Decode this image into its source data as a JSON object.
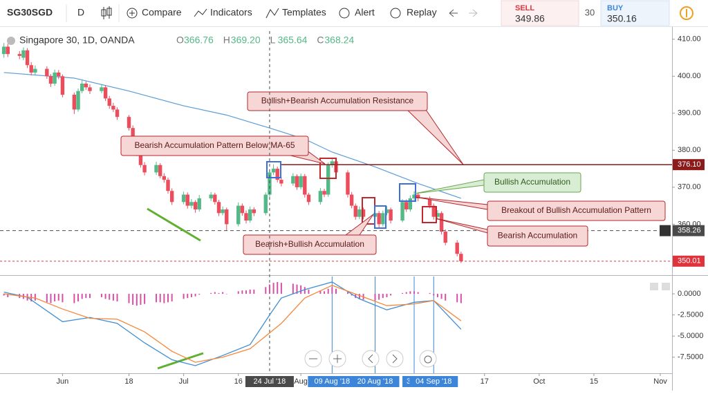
{
  "toolbar": {
    "symbol": "SG30SGD",
    "interval": "D",
    "items": [
      "Compare",
      "Indicators",
      "Templates",
      "Alert",
      "Replay"
    ],
    "sell_label": "SELL",
    "sell_price": "349.86",
    "spread": "30",
    "buy_label": "BUY",
    "buy_price": "350.16"
  },
  "legend": {
    "title": "Singapore 30, 1D, OANDA",
    "ohlc": [
      {
        "label": "O",
        "value": "366.76"
      },
      {
        "label": "H",
        "value": "369.20"
      },
      {
        "label": "L",
        "value": "365.64"
      },
      {
        "label": "C",
        "value": "368.24"
      }
    ]
  },
  "chart_data": [
    {
      "type": "candlestick",
      "colors": {
        "up": "#53b987",
        "down": "#eb4d5c"
      },
      "x": [
        "2018-05-17",
        "2018-05-18",
        "2018-05-21",
        "2018-05-22",
        "2018-05-23",
        "2018-05-24",
        "2018-05-25",
        "2018-05-28",
        "2018-05-29",
        "2018-05-30",
        "2018-05-31",
        "2018-06-01",
        "2018-06-04",
        "2018-06-05",
        "2018-06-06",
        "2018-06-07",
        "2018-06-08",
        "2018-06-11",
        "2018-06-12",
        "2018-06-13",
        "2018-06-14",
        "2018-06-15",
        "2018-06-18",
        "2018-06-19",
        "2018-06-20",
        "2018-06-21",
        "2018-06-22",
        "2018-06-25",
        "2018-06-26",
        "2018-06-27",
        "2018-06-28",
        "2018-06-29",
        "2018-07-02",
        "2018-07-03",
        "2018-07-04",
        "2018-07-05",
        "2018-07-06",
        "2018-07-09",
        "2018-07-10",
        "2018-07-11",
        "2018-07-12",
        "2018-07-13",
        "2018-07-16",
        "2018-07-17",
        "2018-07-18",
        "2018-07-19",
        "2018-07-20",
        "2018-07-23",
        "2018-07-24",
        "2018-07-25",
        "2018-07-26",
        "2018-07-27",
        "2018-07-30",
        "2018-07-31",
        "2018-08-01",
        "2018-08-02",
        "2018-08-03",
        "2018-08-06",
        "2018-08-07",
        "2018-08-08",
        "2018-08-09",
        "2018-08-10",
        "2018-08-13",
        "2018-08-14",
        "2018-08-15",
        "2018-08-16",
        "2018-08-17",
        "2018-08-20",
        "2018-08-21",
        "2018-08-22",
        "2018-08-23",
        "2018-08-24",
        "2018-08-27",
        "2018-08-28",
        "2018-08-29",
        "2018-08-30",
        "2018-08-31",
        "2018-09-03",
        "2018-09-04",
        "2018-09-05",
        "2018-09-06",
        "2018-09-07",
        "2018-09-10",
        "2018-09-11"
      ],
      "ohlc": [
        [
          406,
          409,
          405,
          408
        ],
        [
          408,
          408.8,
          405.2,
          406
        ],
        [
          406,
          406.8,
          404.6,
          405.5
        ],
        [
          405,
          407.8,
          404.3,
          407
        ],
        [
          407,
          407.6,
          402.2,
          403
        ],
        [
          403,
          403.8,
          400.2,
          401
        ],
        [
          401,
          402.9,
          400.3,
          402
        ],
        [
          402,
          402.7,
          399.3,
          400
        ],
        [
          400,
          400.6,
          397.1,
          398
        ],
        [
          398,
          401.8,
          397.4,
          401
        ],
        [
          401,
          401.7,
          399.2,
          400
        ],
        [
          400,
          400.5,
          394.3,
          395
        ],
        [
          395,
          395.6,
          389.8,
          391
        ],
        [
          391,
          396.7,
          390.4,
          396
        ],
        [
          396,
          398.9,
          395.4,
          398
        ],
        [
          398,
          398.6,
          396.3,
          397
        ],
        [
          397,
          397.8,
          395.2,
          396
        ],
        [
          396,
          397.9,
          395.4,
          397
        ],
        [
          397,
          397.5,
          393.3,
          394
        ],
        [
          394,
          394.7,
          391.2,
          392
        ],
        [
          392,
          392.8,
          390.3,
          391
        ],
        [
          391,
          391.6,
          388.2,
          389
        ],
        [
          389,
          389.5,
          385.3,
          386
        ],
        [
          386,
          386.7,
          381.2,
          382
        ],
        [
          382,
          382.8,
          378.4,
          379
        ],
        [
          379,
          379.6,
          375.3,
          376
        ],
        [
          376,
          376.8,
          373.2,
          374
        ],
        [
          374,
          376.9,
          373.3,
          376
        ],
        [
          376,
          376.5,
          372.4,
          373
        ],
        [
          373,
          373.8,
          371.2,
          372
        ],
        [
          372,
          372.6,
          368.3,
          369
        ],
        [
          369,
          369.7,
          365.2,
          366
        ],
        [
          366,
          368.8,
          365.4,
          368
        ],
        [
          368,
          368.6,
          364.2,
          365
        ],
        [
          365,
          366.8,
          364.3,
          366
        ],
        [
          366,
          366.5,
          363.1,
          364
        ],
        [
          364,
          367.9,
          363.4,
          367
        ],
        [
          367,
          368.7,
          366.3,
          368
        ],
        [
          368,
          368.5,
          365.3,
          366
        ],
        [
          366,
          366.6,
          362.2,
          363
        ],
        [
          363,
          364.8,
          362.4,
          364
        ],
        [
          364,
          364.5,
          358.2,
          360
        ],
        [
          360,
          365.9,
          359.4,
          365
        ],
        [
          365,
          365.6,
          362.3,
          363
        ],
        [
          363,
          363.7,
          360.2,
          361
        ],
        [
          361,
          364.8,
          360.4,
          364
        ],
        [
          364,
          364.6,
          362.2,
          363
        ],
        [
          363,
          368.6,
          362.4,
          368
        ],
        [
          368,
          374.9,
          367.4,
          374
        ],
        [
          374,
          376.2,
          373.3,
          375
        ],
        [
          375,
          375.6,
          371.3,
          372
        ],
        [
          372,
          372.7,
          370.2,
          371
        ],
        [
          371,
          373.8,
          370.4,
          373
        ],
        [
          373,
          373.5,
          369.3,
          370
        ],
        [
          370,
          373.7,
          369.4,
          373
        ],
        [
          373,
          373.6,
          367.2,
          368
        ],
        [
          368,
          368.5,
          365.2,
          366
        ],
        [
          366,
          369.8,
          365.3,
          369
        ],
        [
          369,
          369.6,
          367.3,
          368
        ],
        [
          368,
          376.7,
          367.4,
          376
        ],
        [
          376,
          377.8,
          375.3,
          377
        ],
        [
          377,
          377.5,
          373.2,
          374
        ],
        [
          374,
          374.6,
          367.2,
          368
        ],
        [
          368,
          368.7,
          364.3,
          365
        ],
        [
          365,
          365.6,
          361.2,
          362
        ],
        [
          362,
          364.8,
          361.4,
          364
        ],
        [
          364,
          364.5,
          361.3,
          362
        ],
        [
          362,
          363.8,
          361.2,
          363
        ],
        [
          363,
          363.6,
          358.8,
          360
        ],
        [
          360,
          363.7,
          359.4,
          363
        ],
        [
          363,
          364.9,
          362.4,
          364
        ],
        [
          364,
          364.5,
          360.2,
          361
        ],
        [
          361,
          366.8,
          360.5,
          366
        ],
        [
          366,
          366.7,
          363.3,
          364
        ],
        [
          364,
          367.8,
          363.4,
          367
        ],
        [
          367,
          368.9,
          366.3,
          368
        ],
        [
          368,
          368.6,
          366.2,
          367
        ],
        [
          367,
          367.5,
          364.3,
          365
        ],
        [
          365,
          365.6,
          361.2,
          362
        ],
        [
          362,
          363.8,
          361.2,
          363
        ],
        [
          363,
          363.5,
          357.2,
          358
        ],
        [
          358,
          358.6,
          354.3,
          355
        ],
        [
          355,
          355.7,
          351.3,
          352
        ],
        [
          352,
          352.6,
          349.5,
          350.01
        ]
      ],
      "ma": {
        "color": "#5b9cd6",
        "x": [
          "2018-05-17",
          "2018-06-04",
          "2018-06-18",
          "2018-07-02",
          "2018-07-13",
          "2018-07-24",
          "2018-08-02",
          "2018-08-09",
          "2018-08-20",
          "2018-08-31",
          "2018-09-11"
        ],
        "values": [
          401,
          399.5,
          396,
          392,
          389.5,
          386,
          383,
          379.5,
          375.5,
          371,
          367
        ]
      },
      "xlim": [
        "2018-05-16",
        "2018-11-04"
      ],
      "xticks": [
        {
          "value": "2018-06-01",
          "label": "Jun"
        },
        {
          "value": "2018-06-18",
          "label": "18"
        },
        {
          "value": "2018-07-02",
          "label": "Jul"
        },
        {
          "value": "2018-07-16",
          "label": "16"
        },
        {
          "value": "2018-08-01",
          "label": "Aug"
        },
        {
          "value": "2018-09-17",
          "label": "17"
        },
        {
          "value": "2018-10-01",
          "label": "Oct"
        },
        {
          "value": "2018-10-15",
          "label": "15"
        },
        {
          "value": "2018-11-01",
          "label": "Nov"
        }
      ],
      "x_markers": [
        {
          "value": "2018-07-24",
          "label": "24 Jul '18",
          "color": "#4a4a4a"
        },
        {
          "value": "2018-08-09",
          "label": "09 Aug '18",
          "color": "#3d85d8"
        },
        {
          "value": "2018-08-20",
          "label": "20 Aug '18",
          "color": "#3d85d8"
        },
        {
          "value": "2018-08-30",
          "label": "30 A",
          "color": "#3d85d8"
        },
        {
          "value": "2018-09-04",
          "label": "04 Sep '18",
          "color": "#3d85d8"
        }
      ],
      "ylim": [
        346.8,
        412.2
      ],
      "yticks": [
        {
          "value": 360,
          "label": "360.00"
        },
        {
          "value": 370,
          "label": "370.00"
        },
        {
          "value": 380,
          "label": "380.00"
        },
        {
          "value": 390,
          "label": "390.00"
        },
        {
          "value": 400,
          "label": "400.00"
        },
        {
          "value": 410,
          "label": "410.00"
        }
      ],
      "price_lines": [
        {
          "value": 376.1,
          "label": "376.10",
          "color": "#8b1a1a"
        },
        {
          "value": 358.26,
          "label": "358.26",
          "color": "#4a4a4a"
        },
        {
          "value": 350.01,
          "label": "350.01",
          "color": "#e0343d"
        }
      ],
      "annotations": [
        "Bullish+Bearish Accumulation Resistance",
        "Bearish Accumulation Pattern Below MA-65",
        "Bullish Accumulation",
        "Breakout of Bullish Accumulation Pattern",
        "Bearish+Bullish Accumulation",
        "Bearish Accumulation"
      ]
    },
    {
      "type": "macd",
      "xlim": [
        "2018-05-16",
        "2018-11-04"
      ],
      "ylim": [
        -9.4,
        2.05
      ],
      "yticks": [
        {
          "value": -7.5,
          "label": "-7.5000"
        },
        {
          "value": -5,
          "label": "-5.0000"
        },
        {
          "value": -2.5,
          "label": "-2.5000"
        },
        {
          "value": 0,
          "label": "0.0000"
        }
      ],
      "histogram": {
        "color": "#d84fa8",
        "values": [
          -0.2,
          -0.4,
          -0.5,
          -0.6,
          -0.8,
          -0.9,
          -0.8,
          -1.0,
          -1.1,
          -0.9,
          -0.8,
          -1.0,
          -1.1,
          -0.9,
          -0.6,
          -0.5,
          -0.5,
          -0.4,
          -0.6,
          -0.7,
          -0.8,
          -0.9,
          -1.1,
          -1.3,
          -1.4,
          -1.3,
          -1.2,
          -1.0,
          -1.0,
          -1.1,
          -1.0,
          -0.9,
          -0.6,
          -0.5,
          -0.4,
          -0.3,
          -0.1,
          0.1,
          0.2,
          0.1,
          0.2,
          0.0,
          0.3,
          0.4,
          0.4,
          0.5,
          0.5,
          0.8,
          1.1,
          1.3,
          1.4,
          1.3,
          1.2,
          1.1,
          1.0,
          0.8,
          0.5,
          0.4,
          0.3,
          0.6,
          0.8,
          0.6,
          0.2,
          -0.2,
          -0.5,
          -0.6,
          -0.7,
          -0.8,
          -0.7,
          -0.5,
          -0.4,
          -0.2,
          0.1,
          0.2,
          0.3,
          0.3,
          0.2,
          0.1,
          -0.2,
          -0.4,
          -0.6,
          -0.8,
          -1.0,
          -1.1
        ]
      },
      "series": [
        {
          "color": "#3e8ed6",
          "x": [
            "2018-05-17",
            "2018-05-23",
            "2018-06-01",
            "2018-06-08",
            "2018-06-15",
            "2018-06-22",
            "2018-06-29",
            "2018-07-05",
            "2018-07-12",
            "2018-07-19",
            "2018-07-24",
            "2018-07-27",
            "2018-08-02",
            "2018-08-09",
            "2018-08-16",
            "2018-08-23",
            "2018-08-30",
            "2018-09-04",
            "2018-09-11"
          ],
          "values": [
            0.2,
            -0.4,
            -3.3,
            -2.8,
            -3.5,
            -5.8,
            -7.8,
            -8.5,
            -7.3,
            -6.0,
            -2.5,
            -0.5,
            0.5,
            1.4,
            -0.6,
            -1.9,
            -1.0,
            -0.8,
            -4.2
          ]
        },
        {
          "color": "#f5873a",
          "x": [
            "2018-05-17",
            "2018-05-25",
            "2018-06-01",
            "2018-06-08",
            "2018-06-15",
            "2018-06-22",
            "2018-06-29",
            "2018-07-05",
            "2018-07-12",
            "2018-07-19",
            "2018-07-27",
            "2018-08-02",
            "2018-08-09",
            "2018-08-16",
            "2018-08-23",
            "2018-08-30",
            "2018-09-04",
            "2018-09-11"
          ],
          "values": [
            0.0,
            -0.5,
            -1.8,
            -2.9,
            -3.0,
            -4.5,
            -6.8,
            -8.1,
            -7.5,
            -6.5,
            -3.5,
            -0.5,
            1.0,
            -0.2,
            -1.4,
            -1.2,
            -0.8,
            -3.2
          ]
        }
      ]
    }
  ]
}
